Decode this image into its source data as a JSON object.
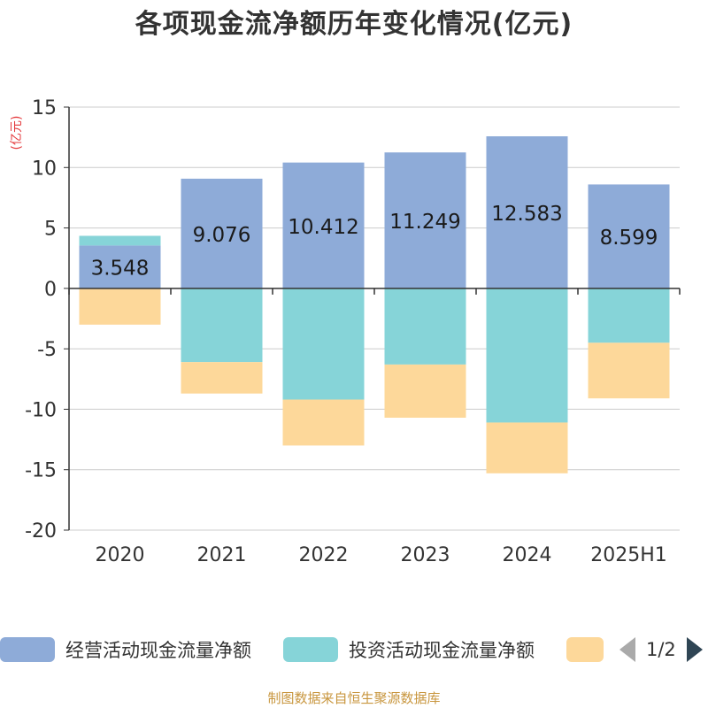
{
  "title": "各项现金流净额历年变化情况(亿元)",
  "unit_label": "(亿元)",
  "footer": "制图数据来自恒生聚源数据库",
  "pager": {
    "text": "1/2"
  },
  "legend": [
    {
      "label": "经营活动现金流量净额",
      "color": "#8eabd8"
    },
    {
      "label": "投资活动现金流量净额",
      "color": "#86d4d8"
    },
    {
      "label": "",
      "color": "#fdd89a"
    }
  ],
  "chart_data": {
    "type": "bar",
    "stacked": true,
    "categories": [
      "2020",
      "2021",
      "2022",
      "2023",
      "2024",
      "2025H1"
    ],
    "ylim": [
      -20,
      15
    ],
    "yticks": [
      15,
      10,
      5,
      0,
      -5,
      -10,
      -15,
      -20
    ],
    "grid": true,
    "legend_position": "bottom",
    "series": [
      {
        "name": "经营活动现金流量净额",
        "color": "#8eabd8",
        "values": [
          3.548,
          9.076,
          10.412,
          11.249,
          12.583,
          8.599
        ],
        "labels": [
          "3.548",
          "9.076",
          "10.412",
          "11.249",
          "12.583",
          "8.599"
        ]
      },
      {
        "name": "投资活动现金流量净额",
        "color": "#86d4d8",
        "values": [
          0.8,
          -6.1,
          -9.2,
          -6.3,
          -11.1,
          -4.5
        ]
      },
      {
        "name": "",
        "color": "#fdd89a",
        "values": [
          -3.0,
          -2.6,
          -3.8,
          -4.4,
          -4.2,
          -4.6
        ]
      }
    ]
  }
}
